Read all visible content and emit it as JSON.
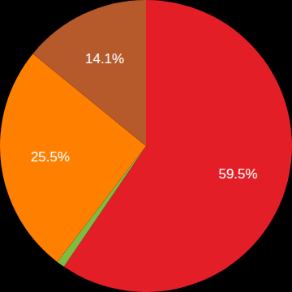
{
  "chart_data": {
    "type": "pie",
    "values": [
      59.5,
      0.9,
      25.5,
      14.1
    ],
    "value_labels": [
      "59.5%",
      null,
      "25.5%",
      "14.1%"
    ],
    "colors": [
      "#e41e26",
      "#7fbc41",
      "#ff8000",
      "#b65a2b"
    ],
    "data_labels": true
  }
}
